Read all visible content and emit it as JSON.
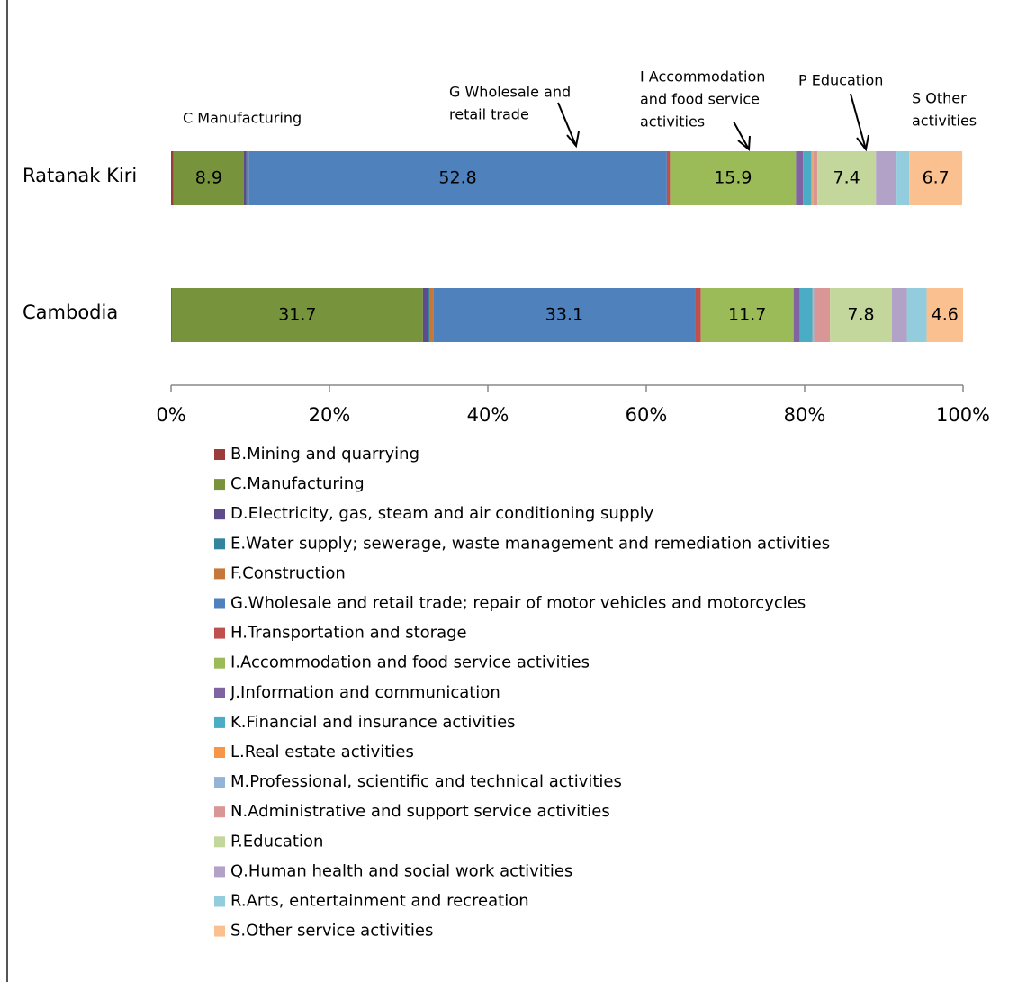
{
  "chart_data": {
    "type": "stacked_bar_horizontal",
    "categories": [
      "Ratanak Kiri",
      "Cambodia"
    ],
    "xlim": [
      0,
      100
    ],
    "xticks": [
      {
        "value": 0,
        "label": "0%"
      },
      {
        "value": 20,
        "label": "20%"
      },
      {
        "value": 40,
        "label": "40%"
      },
      {
        "value": 60,
        "label": "60%"
      },
      {
        "value": 80,
        "label": "80%"
      },
      {
        "value": 100,
        "label": "100%"
      }
    ],
    "series": [
      {
        "name": "B.Mining and quarrying",
        "color": "#9b3b3a",
        "values": [
          0.3,
          0.1
        ]
      },
      {
        "name": "C.Manufacturing",
        "color": "#77933c",
        "values": [
          8.9,
          31.7
        ],
        "value_labels": [
          "8.9",
          "31.7"
        ]
      },
      {
        "name": "D.Electricity, gas, steam and air conditioning supply",
        "color": "#5f4b8b",
        "values": [
          0.3,
          0.7
        ]
      },
      {
        "name": "E.Water supply; sewerage, waste management and remediation activities",
        "color": "#31859c",
        "values": [
          0.1,
          0.2
        ]
      },
      {
        "name": "F.Construction",
        "color": "#c6783a",
        "values": [
          0.2,
          0.4
        ]
      },
      {
        "name": "G.Wholesale and retail trade; repair of motor vehicles and motorcycles",
        "color": "#4f81bd",
        "values": [
          52.8,
          33.1
        ],
        "value_labels": [
          "52.8",
          "33.1"
        ]
      },
      {
        "name": "H.Transportation and storage",
        "color": "#c0504d",
        "values": [
          0.4,
          0.7
        ]
      },
      {
        "name": "I.Accommodation and food service activities",
        "color": "#9bbb59",
        "values": [
          15.9,
          11.7
        ],
        "value_labels": [
          "15.9",
          "11.7"
        ]
      },
      {
        "name": "J.Information and communication",
        "color": "#8064a2",
        "values": [
          0.9,
          0.8
        ]
      },
      {
        "name": "K.Financial and insurance activities",
        "color": "#4bacc6",
        "values": [
          1.0,
          1.6
        ]
      },
      {
        "name": "L.Real estate activities",
        "color": "#f79646",
        "values": [
          0.2,
          0.1
        ]
      },
      {
        "name": "M.Professional, scientific and technical activities",
        "color": "#95b3d7",
        "values": [
          0.1,
          0.1
        ]
      },
      {
        "name": "N.Administrative and support service activities",
        "color": "#d99694",
        "values": [
          0.5,
          2.0
        ]
      },
      {
        "name": "P.Education",
        "color": "#c3d69b",
        "values": [
          7.4,
          7.8
        ],
        "value_labels": [
          "7.4",
          "7.8"
        ]
      },
      {
        "name": "Q.Human health and social work activities",
        "color": "#b3a2c7",
        "values": [
          2.6,
          1.9
        ]
      },
      {
        "name": "R.Arts, entertainment and recreation",
        "color": "#93cddd",
        "values": [
          1.6,
          2.5
        ]
      },
      {
        "name": "S.Other service activities",
        "color": "#fac090",
        "values": [
          6.7,
          4.6
        ],
        "value_labels": [
          "6.7",
          "4.6"
        ]
      }
    ],
    "annotations": [
      {
        "lines": [
          "C Manufacturing"
        ]
      },
      {
        "lines": [
          "G Wholesale and",
          "retail trade"
        ]
      },
      {
        "lines": [
          "I Accommodation",
          "and food service",
          "activities"
        ]
      },
      {
        "lines": [
          "P Education"
        ]
      },
      {
        "lines": [
          "S Other",
          "activities"
        ]
      }
    ]
  }
}
